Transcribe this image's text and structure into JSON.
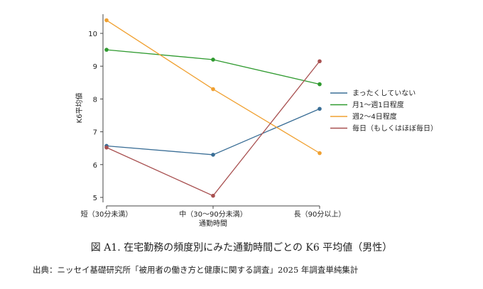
{
  "chart_data": {
    "type": "line",
    "xlabel": "通勤時間",
    "ylabel": "K6平均値",
    "categories": [
      "短（30分未満）",
      "中（30〜90分未満）",
      "長（90分以上）"
    ],
    "ylim": [
      4.8,
      10.5
    ],
    "yticks": [
      5,
      6,
      7,
      8,
      9,
      10
    ],
    "grid": false,
    "legend_position": "right",
    "series": [
      {
        "name": "まったくしていない",
        "color": "#3a6e96",
        "values": [
          6.57,
          6.3,
          7.7
        ]
      },
      {
        "name": "月1〜週1日程度",
        "color": "#2f9a2f",
        "values": [
          9.5,
          9.2,
          8.45
        ]
      },
      {
        "name": "週2〜4日程度",
        "color": "#f0a030",
        "values": [
          10.4,
          8.3,
          6.35
        ]
      },
      {
        "name": "毎日（もしくはほぼ毎日）",
        "color": "#a85050",
        "values": [
          6.52,
          5.05,
          9.15
        ]
      }
    ]
  },
  "caption": "図 A1.  在宅勤務の頻度別にみた通勤時間ごとの K6 平均値（男性）",
  "source": "出典：ニッセイ基礎研究所「被用者の働き方と健康に関する調査」2025 年調査単純集計"
}
